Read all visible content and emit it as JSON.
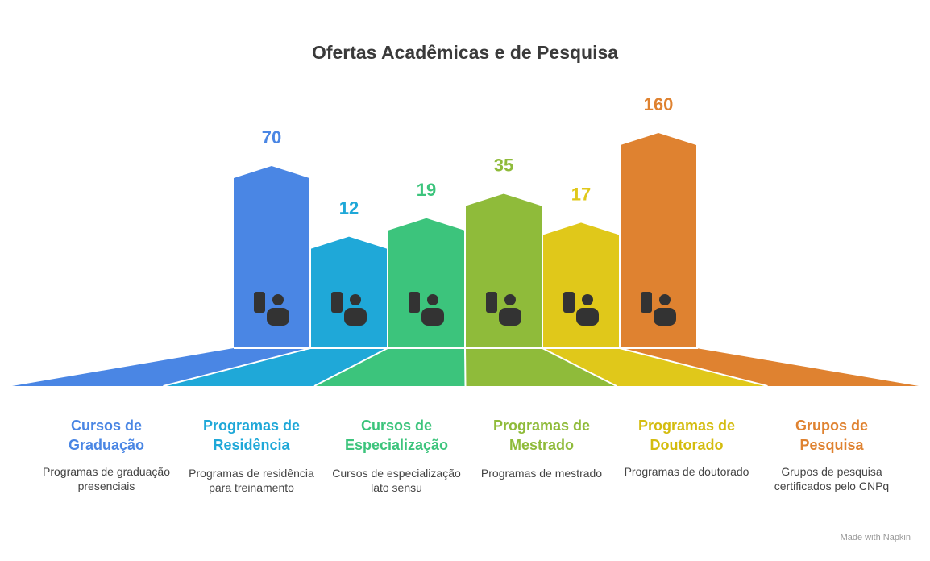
{
  "chart_data": {
    "type": "bar",
    "title": "Ofertas Acadêmicas e de Pesquisa",
    "categories": [
      "Cursos de Graduação",
      "Programas de Residência",
      "Cursos de Especialização",
      "Programas de Mestrado",
      "Programas de Doutorado",
      "Grupos de Pesquisa"
    ],
    "descriptions": [
      "Programas de graduação presenciais",
      "Programas de residência para treinamento",
      "Cursos de especialização lato sensu",
      "Programas de mestrado",
      "Programas de doutorado",
      "Grupos de pesquisa certificados pelo CNPq"
    ],
    "values": [
      70,
      12,
      19,
      35,
      17,
      160
    ],
    "colors": [
      "#4a86e4",
      "#1fa8d8",
      "#3cc47c",
      "#8fbb3a",
      "#e0c81a",
      "#df8230"
    ],
    "log_scale": true,
    "footer": "Made with Napkin"
  }
}
